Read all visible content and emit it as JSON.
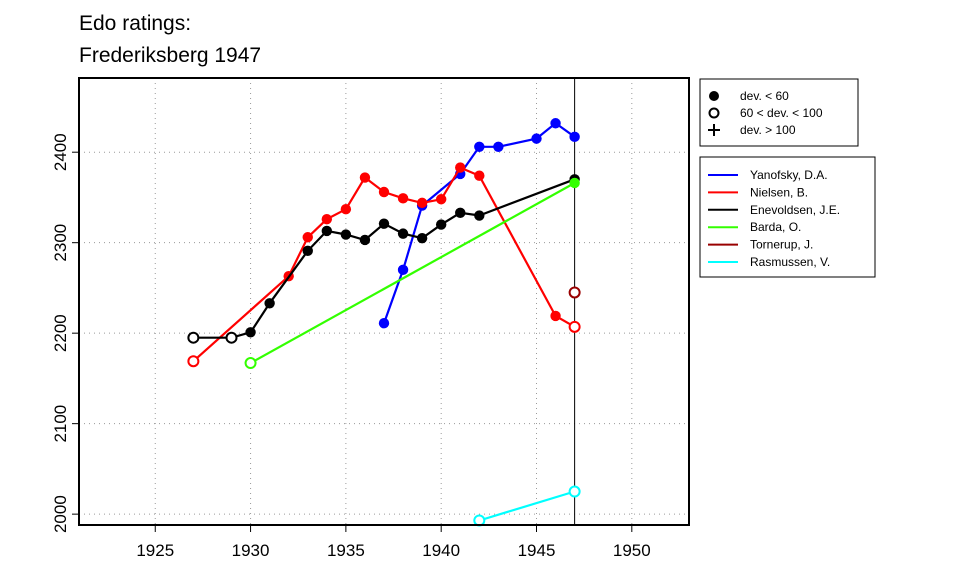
{
  "chart_data": {
    "type": "line",
    "title": [
      "Edo ratings:",
      "Frederiksberg 1947"
    ],
    "xlabel": "",
    "ylabel": "",
    "xlim": [
      1921,
      1953
    ],
    "ylim": [
      1988,
      2482
    ],
    "x_ticks": [
      1925,
      1930,
      1935,
      1940,
      1945,
      1950
    ],
    "y_ticks": [
      2000,
      2100,
      2200,
      2300,
      2400
    ],
    "grid": true,
    "reference_line_x": 1947,
    "symbol_legend": {
      "placement": "top-right",
      "entries": [
        {
          "symbol": "filled-circle",
          "label": "dev. < 60"
        },
        {
          "symbol": "open-circle",
          "label": "60 < dev. < 100"
        },
        {
          "symbol": "plus",
          "label": "dev. > 100"
        }
      ]
    },
    "series": [
      {
        "name": "Yanofsky, D.A.",
        "color": "#0000ff",
        "points": [
          {
            "x": 1937,
            "y": 2211,
            "m": "f"
          },
          {
            "x": 1938,
            "y": 2270,
            "m": "f"
          },
          {
            "x": 1939,
            "y": 2341,
            "m": "f"
          },
          {
            "x": 1941,
            "y": 2376,
            "m": "f"
          },
          {
            "x": 1942,
            "y": 2406,
            "m": "f"
          },
          {
            "x": 1943,
            "y": 2406,
            "m": "f"
          },
          {
            "x": 1945,
            "y": 2415,
            "m": "f"
          },
          {
            "x": 1946,
            "y": 2432,
            "m": "f"
          },
          {
            "x": 1947,
            "y": 2417,
            "m": "f"
          }
        ]
      },
      {
        "name": "Nielsen, B.",
        "color": "#ff0000",
        "points": [
          {
            "x": 1927,
            "y": 2169,
            "m": "o"
          },
          {
            "x": 1932,
            "y": 2263,
            "m": "f"
          },
          {
            "x": 1933,
            "y": 2306,
            "m": "f"
          },
          {
            "x": 1934,
            "y": 2326,
            "m": "f"
          },
          {
            "x": 1935,
            "y": 2337,
            "m": "f"
          },
          {
            "x": 1936,
            "y": 2372,
            "m": "f"
          },
          {
            "x": 1937,
            "y": 2356,
            "m": "f"
          },
          {
            "x": 1938,
            "y": 2349,
            "m": "f"
          },
          {
            "x": 1939,
            "y": 2344,
            "m": "f"
          },
          {
            "x": 1940,
            "y": 2348,
            "m": "f"
          },
          {
            "x": 1941,
            "y": 2383,
            "m": "f"
          },
          {
            "x": 1942,
            "y": 2374,
            "m": "f"
          },
          {
            "x": 1946,
            "y": 2219,
            "m": "f"
          },
          {
            "x": 1947,
            "y": 2207,
            "m": "o"
          }
        ]
      },
      {
        "name": "Enevoldsen, J.E.",
        "color": "#000000",
        "points": [
          {
            "x": 1927,
            "y": 2195,
            "m": "o"
          },
          {
            "x": 1929,
            "y": 2195,
            "m": "o"
          },
          {
            "x": 1930,
            "y": 2201,
            "m": "f"
          },
          {
            "x": 1931,
            "y": 2233,
            "m": "f"
          },
          {
            "x": 1933,
            "y": 2291,
            "m": "f"
          },
          {
            "x": 1934,
            "y": 2313,
            "m": "f"
          },
          {
            "x": 1935,
            "y": 2309,
            "m": "f"
          },
          {
            "x": 1936,
            "y": 2303,
            "m": "f"
          },
          {
            "x": 1937,
            "y": 2321,
            "m": "f"
          },
          {
            "x": 1938,
            "y": 2310,
            "m": "f"
          },
          {
            "x": 1939,
            "y": 2305,
            "m": "f"
          },
          {
            "x": 1940,
            "y": 2320,
            "m": "f"
          },
          {
            "x": 1941,
            "y": 2333,
            "m": "f"
          },
          {
            "x": 1942,
            "y": 2330,
            "m": "f"
          },
          {
            "x": 1947,
            "y": 2370,
            "m": "f"
          }
        ]
      },
      {
        "name": "Barda, O.",
        "color": "#33ff00",
        "points": [
          {
            "x": 1930,
            "y": 2167,
            "m": "o"
          },
          {
            "x": 1947,
            "y": 2366,
            "m": "f"
          }
        ]
      },
      {
        "name": "Tornerup, J.",
        "color": "#990000",
        "points": [
          {
            "x": 1947,
            "y": 2245,
            "m": "o"
          }
        ]
      },
      {
        "name": "Rasmussen, V.",
        "color": "#00ffff",
        "points": [
          {
            "x": 1942,
            "y": 1993,
            "m": "o"
          },
          {
            "x": 1947,
            "y": 2025,
            "m": "o"
          }
        ]
      }
    ]
  }
}
